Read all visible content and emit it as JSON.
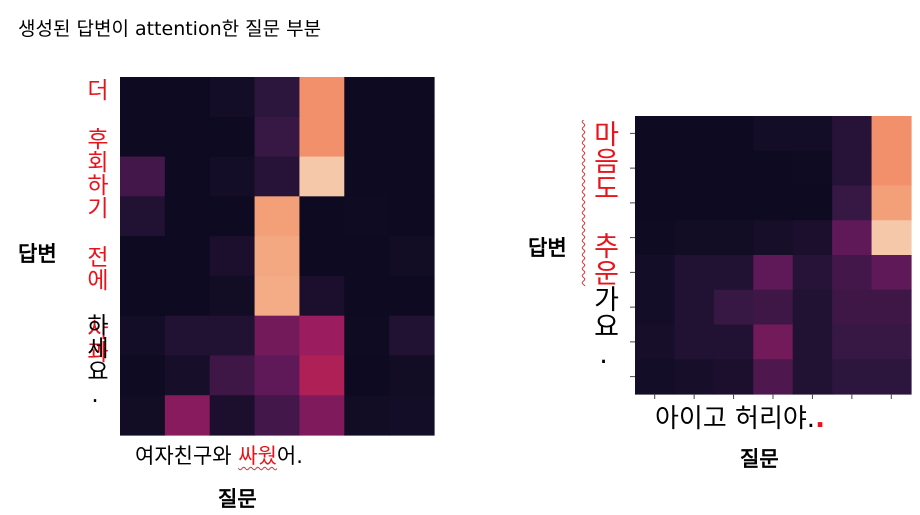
{
  "title": "생성된 답변이 attention한 질문 부분",
  "colors": {
    "highlight": "#e8141c"
  },
  "panels": [
    {
      "id": "left",
      "y_label": "답변",
      "x_label": "질문",
      "answer_red": "더 후회하기 전에 사과",
      "answer_black": "하세요.",
      "question_before": "여자친구와 ",
      "question_red": "싸웠",
      "question_after": "어.",
      "heat": [
        [
          0.02,
          0.02,
          0.05,
          0.15,
          0.82,
          0.02,
          0.02
        ],
        [
          0.02,
          0.02,
          0.02,
          0.18,
          0.82,
          0.02,
          0.02
        ],
        [
          0.22,
          0.02,
          0.05,
          0.12,
          0.95,
          0.02,
          0.02
        ],
        [
          0.1,
          0.02,
          0.02,
          0.85,
          0.02,
          0.03,
          0.02
        ],
        [
          0.02,
          0.02,
          0.08,
          0.87,
          0.02,
          0.02,
          0.04
        ],
        [
          0.02,
          0.02,
          0.04,
          0.88,
          0.08,
          0.02,
          0.02
        ],
        [
          0.05,
          0.1,
          0.1,
          0.35,
          0.45,
          0.03,
          0.1
        ],
        [
          0.03,
          0.06,
          0.2,
          0.3,
          0.5,
          0.02,
          0.04
        ],
        [
          0.04,
          0.4,
          0.08,
          0.22,
          0.38,
          0.04,
          0.05
        ]
      ]
    },
    {
      "id": "right",
      "y_label": "답변",
      "x_label": "질문",
      "answer_red": "마음도 추운",
      "answer_black": "가요.",
      "question_text": "아이고 허리야.",
      "question_red_dot": ".",
      "heat": [
        [
          0.02,
          0.02,
          0.02,
          0.05,
          0.05,
          0.12,
          0.82
        ],
        [
          0.02,
          0.02,
          0.02,
          0.02,
          0.03,
          0.12,
          0.82
        ],
        [
          0.02,
          0.02,
          0.02,
          0.02,
          0.02,
          0.18,
          0.85
        ],
        [
          0.03,
          0.04,
          0.04,
          0.06,
          0.08,
          0.3,
          0.95
        ],
        [
          0.05,
          0.1,
          0.1,
          0.3,
          0.12,
          0.22,
          0.3
        ],
        [
          0.05,
          0.1,
          0.18,
          0.2,
          0.1,
          0.2,
          0.2
        ],
        [
          0.06,
          0.1,
          0.1,
          0.35,
          0.1,
          0.18,
          0.18
        ],
        [
          0.05,
          0.06,
          0.08,
          0.25,
          0.1,
          0.15,
          0.15
        ]
      ]
    }
  ]
}
